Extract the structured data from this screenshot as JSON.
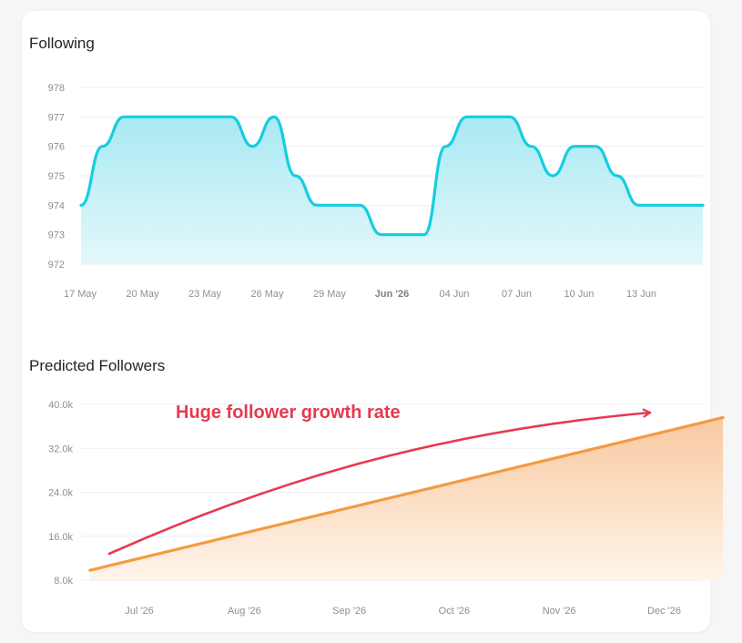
{
  "colors": {
    "following_line": "#16cde0",
    "following_fill_top": "#a9e9f3",
    "following_fill_bottom": "#e3f8fb",
    "predicted_line": "#f59a42",
    "predicted_fill_top": "#f9c9a0",
    "predicted_fill_bottom": "#fff4ea",
    "annotation": "#e8384f",
    "grid": "#eceef1"
  },
  "chart_data": [
    {
      "type": "area",
      "title": "Following",
      "ylim": [
        972,
        978
      ],
      "yticks": [
        "978",
        "977",
        "976",
        "975",
        "974",
        "973",
        "972"
      ],
      "xticks": [
        "17 May",
        "20 May",
        "23 May",
        "26 May",
        "29 May",
        "Jun '26",
        "04 Jun",
        "07 Jun",
        "10 Jun",
        "13 Jun"
      ],
      "xtick_bold_index": 5,
      "x": [
        0,
        1,
        2,
        3,
        4,
        5,
        6,
        7,
        8,
        9,
        10,
        11,
        12,
        13,
        14,
        15,
        16,
        17,
        18,
        19,
        20,
        21,
        22,
        23,
        24,
        25,
        26,
        27,
        28,
        29
      ],
      "values": [
        974,
        976,
        977,
        977,
        977,
        977,
        977,
        977,
        976,
        977,
        975,
        974,
        974,
        974,
        973,
        973,
        973,
        976,
        977,
        977,
        977,
        976,
        975,
        976,
        976,
        975,
        974,
        974,
        974,
        974
      ],
      "grid": true
    },
    {
      "type": "area",
      "title": "Predicted Followers",
      "ylim": [
        8000,
        40000
      ],
      "yticks": [
        "40.0k",
        "32.0k",
        "24.0k",
        "16.0k",
        "8.0k"
      ],
      "xticks": [
        "Jul '26",
        "Aug '26",
        "Sep '26",
        "Oct '26",
        "Nov '26",
        "Dec '26"
      ],
      "x": [
        0,
        6.03
      ],
      "values": [
        9800,
        37600
      ],
      "annotation": "Huge follower growth rate",
      "grid": true
    }
  ]
}
